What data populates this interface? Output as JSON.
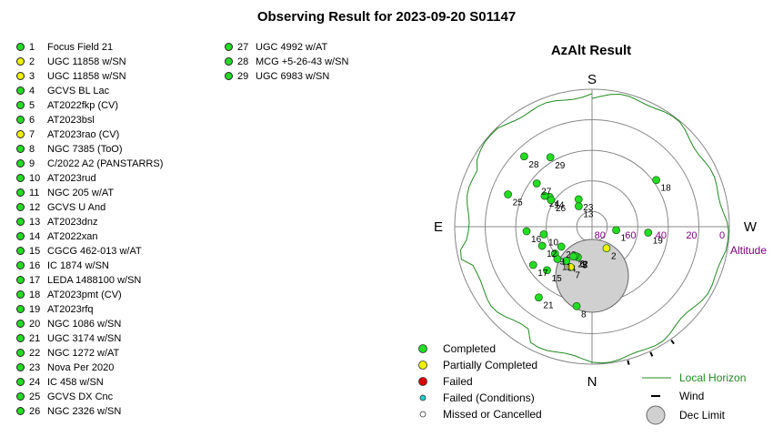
{
  "title": "Observing Result for 2023-09-20 S01147",
  "colors": {
    "completed": "#22dd22",
    "partial": "#f0f000",
    "failed": "#dd0000",
    "failed_conditions": "#22cccc",
    "horizon": "#228B22",
    "altitude_label": "#800080"
  },
  "targets": [
    {
      "num": "1",
      "name": "Focus Field 21",
      "status": "completed"
    },
    {
      "num": "2",
      "name": "UGC 11858 w/SN",
      "status": "partial"
    },
    {
      "num": "3",
      "name": "UGC 11858 w/SN",
      "status": "partial"
    },
    {
      "num": "4",
      "name": "GCVS BL Lac",
      "status": "completed"
    },
    {
      "num": "5",
      "name": "AT2022fkp (CV)",
      "status": "completed"
    },
    {
      "num": "6",
      "name": "AT2023bsl",
      "status": "completed"
    },
    {
      "num": "7",
      "name": "AT2023rao (CV)",
      "status": "partial"
    },
    {
      "num": "8",
      "name": "NGC 7385 (ToO)",
      "status": "completed"
    },
    {
      "num": "9",
      "name": "C/2022 A2 (PANSTARRS)",
      "status": "completed"
    },
    {
      "num": "10",
      "name": "AT2023rud",
      "status": "completed"
    },
    {
      "num": "11",
      "name": "NGC 205 w/AT",
      "status": "completed"
    },
    {
      "num": "12",
      "name": "GCVS U And",
      "status": "completed"
    },
    {
      "num": "13",
      "name": "AT2023dnz",
      "status": "completed"
    },
    {
      "num": "14",
      "name": "AT2022xan",
      "status": "completed"
    },
    {
      "num": "15",
      "name": "CGCG 462-013 w/AT",
      "status": "completed"
    },
    {
      "num": "16",
      "name": "IC 1874 w/SN",
      "status": "completed"
    },
    {
      "num": "17",
      "name": "LEDA 1488100 w/SN",
      "status": "completed"
    },
    {
      "num": "18",
      "name": "AT2023pmt (CV)",
      "status": "completed"
    },
    {
      "num": "19",
      "name": "AT2023rfq",
      "status": "completed"
    },
    {
      "num": "20",
      "name": "NGC 1086 w/SN",
      "status": "completed"
    },
    {
      "num": "21",
      "name": "UGC 3174 w/SN",
      "status": "completed"
    },
    {
      "num": "22",
      "name": "NGC 1272 w/AT",
      "status": "completed"
    },
    {
      "num": "23",
      "name": "Nova Per 2020",
      "status": "completed"
    },
    {
      "num": "24",
      "name": "IC 458 w/SN",
      "status": "completed"
    },
    {
      "num": "25",
      "name": "GCVS DX Cnc",
      "status": "completed"
    },
    {
      "num": "26",
      "name": "NGC 2326 w/SN",
      "status": "completed"
    },
    {
      "num": "27",
      "name": "UGC 4992 w/AT",
      "status": "completed"
    },
    {
      "num": "28",
      "name": "MCG +5-26-43 w/SN",
      "status": "completed"
    },
    {
      "num": "29",
      "name": "UGC 6983 w/SN",
      "status": "completed"
    }
  ],
  "chart_data": {
    "type": "scatter",
    "title": "AzAlt Result",
    "projection": "polar, altitude radial (90 at center, 0 at edge), azimuth S top, E left, W right, N bottom",
    "compass": {
      "north": "N",
      "south": "S",
      "east": "E",
      "west": "W"
    },
    "radial_axis": {
      "label": "Altitude",
      "ticks": [
        "0",
        "20",
        "40",
        "60",
        "80"
      ]
    },
    "points": [
      {
        "label": "1",
        "az": 262,
        "alt": 74,
        "status": "completed"
      },
      {
        "label": "2",
        "az": 214,
        "alt": 73,
        "status": "partial"
      },
      {
        "label": "3",
        "az": 154,
        "alt": 68,
        "status": "partial"
      },
      {
        "label": "4",
        "az": 143,
        "alt": 62,
        "status": "completed"
      },
      {
        "label": "5",
        "az": 155,
        "alt": 68,
        "status": "completed"
      },
      {
        "label": "6",
        "az": 150,
        "alt": 68,
        "status": "completed"
      },
      {
        "label": "7",
        "az": 152,
        "alt": 60,
        "status": "partial"
      },
      {
        "label": "8",
        "az": 169,
        "alt": 37,
        "status": "completed"
      },
      {
        "label": "9",
        "az": 126,
        "alt": 60,
        "status": "completed"
      },
      {
        "label": "10",
        "az": 99,
        "alt": 58,
        "status": "completed"
      },
      {
        "label": "11",
        "az": 133,
        "alt": 59,
        "status": "completed"
      },
      {
        "label": "12",
        "az": 111,
        "alt": 55,
        "status": "completed"
      },
      {
        "label": "13",
        "az": 33,
        "alt": 74,
        "status": "completed"
      },
      {
        "label": "14",
        "az": 55,
        "alt": 56,
        "status": "completed"
      },
      {
        "label": "15",
        "az": 134,
        "alt": 49,
        "status": "completed"
      },
      {
        "label": "16",
        "az": 94,
        "alt": 47,
        "status": "completed"
      },
      {
        "label": "17",
        "az": 123,
        "alt": 44,
        "status": "completed"
      },
      {
        "label": "18",
        "az": 306,
        "alt": 38,
        "status": "completed"
      },
      {
        "label": "19",
        "az": 264,
        "alt": 53,
        "status": "completed"
      },
      {
        "label": "20",
        "az": 123,
        "alt": 66,
        "status": "completed"
      },
      {
        "label": "21",
        "az": 143,
        "alt": 32,
        "status": "completed"
      },
      {
        "label": "22",
        "az": 148,
        "alt": 67,
        "status": "completed"
      },
      {
        "label": "23",
        "az": 26,
        "alt": 70,
        "status": "completed"
      },
      {
        "label": "24",
        "az": 57,
        "alt": 53,
        "status": "completed"
      },
      {
        "label": "25",
        "az": 69,
        "alt": 31,
        "status": "completed"
      },
      {
        "label": "26",
        "az": 57,
        "alt": 58,
        "status": "completed"
      },
      {
        "label": "27",
        "az": 52,
        "alt": 44,
        "status": "completed"
      },
      {
        "label": "28",
        "az": 44,
        "alt": 26,
        "status": "completed"
      },
      {
        "label": "29",
        "az": 31,
        "alt": 37,
        "status": "completed"
      }
    ],
    "dec_limit": {
      "label": "Dec Limit"
    },
    "wind_marks_az": [
      195,
      205,
      215
    ],
    "legend": [
      {
        "label": "Completed",
        "symbol": "completed"
      },
      {
        "label": "Partially Completed",
        "symbol": "partial"
      },
      {
        "label": "Failed",
        "symbol": "failed"
      },
      {
        "label": "Failed (Conditions)",
        "symbol": "failed_conditions"
      },
      {
        "label": "Missed or Cancelled",
        "symbol": "missed"
      },
      {
        "label": "Local Horizon",
        "symbol": "horizon"
      },
      {
        "label": "Wind",
        "symbol": "wind"
      },
      {
        "label": "Dec Limit",
        "symbol": "dec_limit"
      }
    ]
  }
}
